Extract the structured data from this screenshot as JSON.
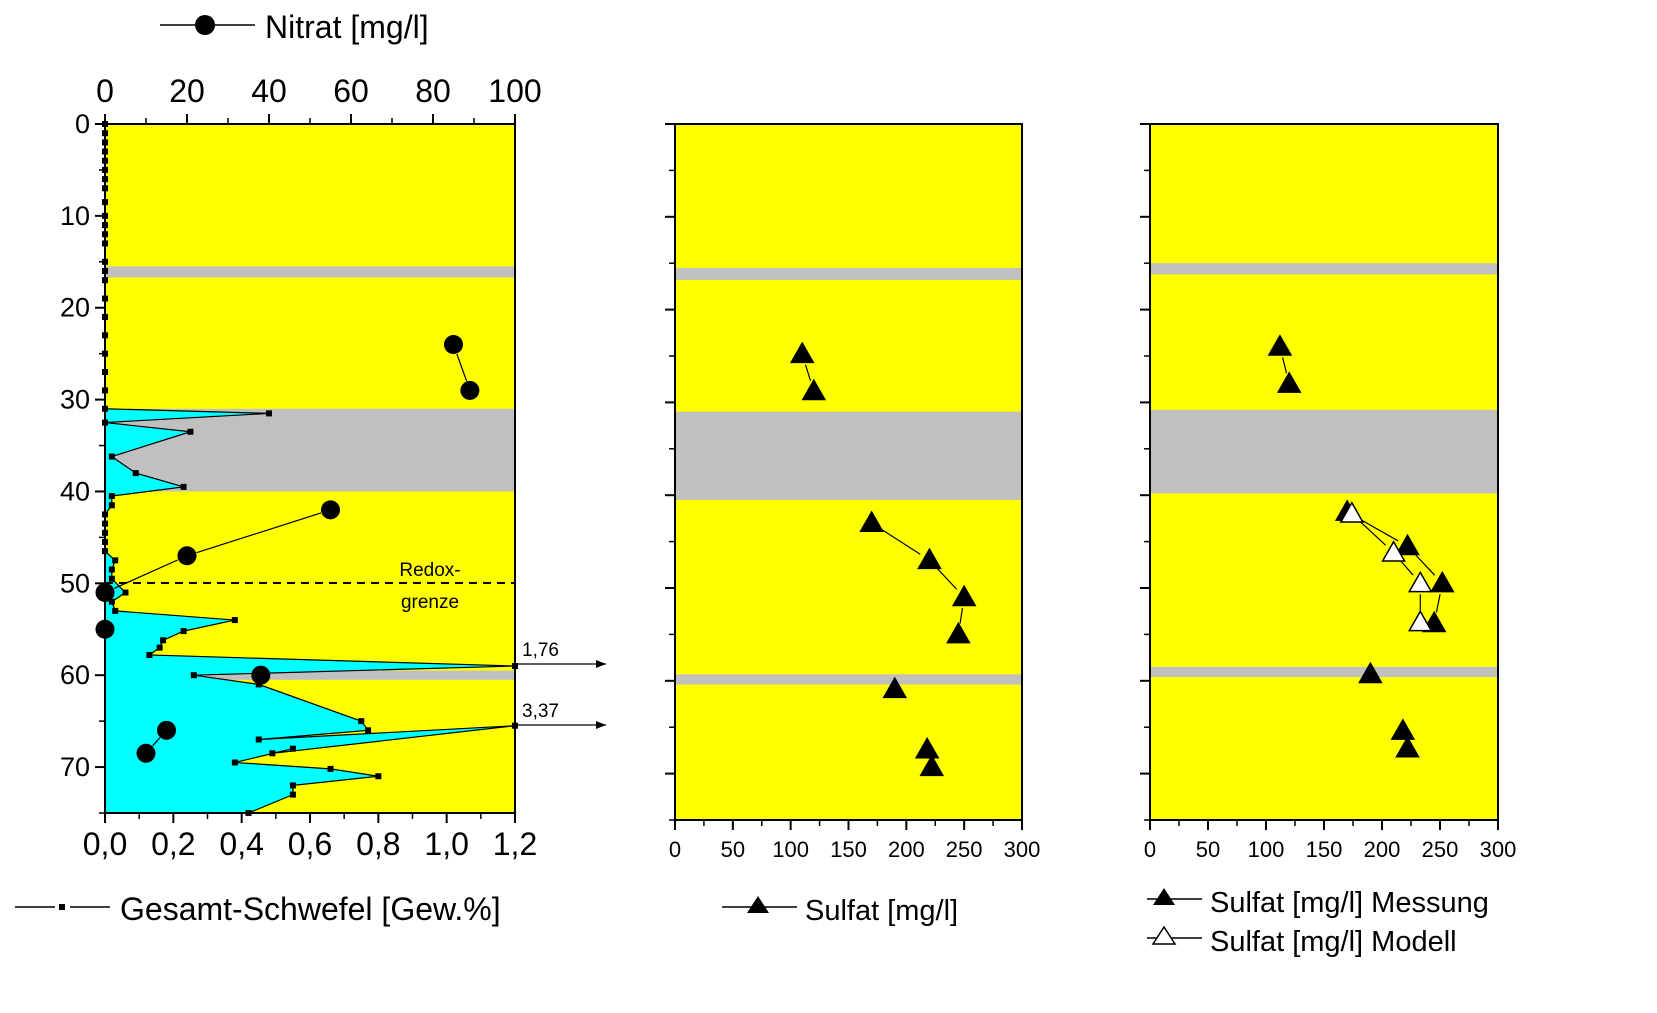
{
  "chart_data": [
    {
      "type": "line",
      "panel": "left",
      "plot_background": "#ffff00",
      "axes": {
        "left_y": {
          "ticks": [
            "0",
            "10",
            "20",
            "30",
            "40",
            "50",
            "60",
            "70"
          ],
          "range": [
            0,
            75
          ],
          "inverted": true
        },
        "top_x": {
          "ticks": [
            "0",
            "20",
            "40",
            "60",
            "80",
            "100"
          ],
          "range": [
            0,
            100
          ]
        },
        "bottom_x": {
          "ticks": [
            "0,0",
            "0,2",
            "0,4",
            "0,6",
            "0,8",
            "1,0",
            "1,2"
          ],
          "range": [
            0,
            1.2
          ]
        }
      },
      "clay_bands": [
        [
          15.5,
          16.7
        ],
        [
          31.0,
          40.0
        ],
        [
          59.5,
          60.5
        ]
      ],
      "band_color": "#c0c0c0",
      "series": [
        {
          "name": "Nitrat [mg/l]",
          "axis": "top_x",
          "marker": "filled-circle",
          "points": [
            [
              85,
              24
            ],
            [
              89,
              29
            ],
            [
              55,
              42
            ],
            [
              20,
              47
            ],
            [
              0,
              51
            ],
            [
              0,
              55
            ],
            [
              38,
              60
            ],
            [
              15,
              66
            ],
            [
              10,
              68.5
            ]
          ],
          "connected_pairs": [
            [
              0,
              1
            ],
            [
              2,
              3
            ],
            [
              3,
              4
            ],
            [
              7,
              8
            ]
          ]
        },
        {
          "name": "Gesamt-Schwefel [Gew.%]",
          "axis": "bottom_x",
          "marker": "small-square",
          "fill": "#00ffff",
          "points": [
            [
              0,
              0
            ],
            [
              0,
              1
            ],
            [
              0,
              2
            ],
            [
              0,
              3
            ],
            [
              0,
              4
            ],
            [
              0,
              5
            ],
            [
              0,
              6
            ],
            [
              0,
              7
            ],
            [
              0,
              8.5
            ],
            [
              0,
              10
            ],
            [
              0,
              11
            ],
            [
              0,
              12
            ],
            [
              0,
              13
            ],
            [
              0,
              15
            ],
            [
              0,
              16
            ],
            [
              0,
              17
            ],
            [
              0,
              19
            ],
            [
              0,
              21
            ],
            [
              0,
              23
            ],
            [
              0,
              25
            ],
            [
              0,
              27
            ],
            [
              0,
              29
            ],
            [
              0,
              31
            ],
            [
              0.48,
              31.5
            ],
            [
              0,
              32.5
            ],
            [
              0.25,
              33.5
            ],
            [
              0.02,
              36.2
            ],
            [
              0.09,
              38
            ],
            [
              0.23,
              39.5
            ],
            [
              0.02,
              40.5
            ],
            [
              0.02,
              41.5
            ],
            [
              0,
              42.5
            ],
            [
              0,
              43.5
            ],
            [
              0,
              44.5
            ],
            [
              0,
              45.5
            ],
            [
              0,
              46.5
            ],
            [
              0.03,
              47.5
            ],
            [
              0.02,
              48.5
            ],
            [
              0.02,
              49.5
            ],
            [
              0.06,
              51
            ],
            [
              0.02,
              52
            ],
            [
              0.03,
              53
            ],
            [
              0.38,
              54
            ],
            [
              0.23,
              55.2
            ],
            [
              0.17,
              56.2
            ],
            [
              0.16,
              57
            ],
            [
              0.13,
              57.8
            ],
            [
              1.2,
              59
            ],
            [
              0.26,
              60
            ],
            [
              0.45,
              61
            ],
            [
              0.75,
              65
            ],
            [
              0.77,
              66
            ],
            [
              0.45,
              67
            ],
            [
              1.2,
              65.5
            ],
            [
              0.49,
              68.5
            ],
            [
              0.55,
              68
            ],
            [
              0.38,
              69.5
            ],
            [
              0.66,
              70.2
            ],
            [
              0.8,
              71
            ],
            [
              0.55,
              72
            ],
            [
              0.55,
              73
            ],
            [
              0.42,
              75
            ]
          ]
        }
      ],
      "redox_line_depth": 50,
      "annotations": {
        "redox": [
          "Redox-",
          "grenze"
        ],
        "outlier_1": "1,76",
        "outlier_2": "3,37"
      },
      "legend_top": "Nitrat [mg/l]",
      "legend_bottom": "Gesamt-Schwefel [Gew.%]"
    },
    {
      "type": "scatter",
      "panel": "middle",
      "plot_background": "#ffff00",
      "axes": {
        "left_y": {
          "range": [
            0,
            75
          ],
          "inverted": true,
          "labels_shown": false
        },
        "bottom_x": {
          "ticks": [
            "0",
            "50",
            "100",
            "150",
            "200",
            "250",
            "300"
          ],
          "range": [
            0,
            300
          ]
        }
      },
      "clay_bands": [
        [
          15.5,
          16.8
        ],
        [
          31.0,
          40.5
        ],
        [
          59.3,
          60.4
        ]
      ],
      "band_color": "#c0c0c0",
      "series": [
        {
          "name": "Sulfat [mg/l]",
          "marker": "filled-triangle",
          "points": [
            [
              110,
              24.8
            ],
            [
              120,
              28.8
            ],
            [
              170,
              43
            ],
            [
              220,
              47
            ],
            [
              250,
              51
            ],
            [
              245,
              55
            ],
            [
              190,
              60.9
            ],
            [
              218,
              67.4
            ],
            [
              222,
              69.3
            ]
          ],
          "connected_pairs": [
            [
              0,
              1
            ],
            [
              2,
              3
            ],
            [
              3,
              4
            ],
            [
              4,
              5
            ]
          ]
        }
      ],
      "legend": "Sulfat [mg/l]"
    },
    {
      "type": "scatter",
      "panel": "right",
      "plot_background": "#ffff00",
      "axes": {
        "left_y": {
          "range": [
            0,
            75
          ],
          "inverted": true,
          "labels_shown": false
        },
        "bottom_x": {
          "ticks": [
            "0",
            "50",
            "100",
            "150",
            "200",
            "250",
            "300"
          ],
          "range": [
            0,
            300
          ]
        }
      },
      "clay_bands": [
        [
          15.0,
          16.2
        ],
        [
          30.8,
          39.8
        ],
        [
          58.5,
          59.6
        ]
      ],
      "band_color": "#c0c0c0",
      "series": [
        {
          "name": "Sulfat [mg/l] Messung",
          "marker": "filled-triangle",
          "points": [
            [
              112,
              24
            ],
            [
              120,
              28
            ],
            [
              170,
              41.8
            ],
            [
              222,
              45.5
            ],
            [
              252,
              49.5
            ],
            [
              245,
              53.8
            ],
            [
              190,
              59.3
            ],
            [
              218,
              65.4
            ],
            [
              222,
              67.3
            ]
          ],
          "connected_pairs": [
            [
              0,
              1
            ],
            [
              2,
              3
            ],
            [
              3,
              4
            ],
            [
              4,
              5
            ]
          ]
        },
        {
          "name": "Sulfat [mg/l] Modell",
          "marker": "open-triangle",
          "points": [
            [
              174,
              42
            ],
            [
              210,
              46.2
            ],
            [
              233,
              49.5
            ],
            [
              233,
              53.7
            ]
          ],
          "connected_pairs": [
            [
              0,
              1
            ],
            [
              1,
              2
            ],
            [
              2,
              3
            ]
          ]
        }
      ],
      "legend": [
        "Sulfat [mg/l] Messung",
        "Sulfat [mg/l] Modell"
      ]
    }
  ]
}
